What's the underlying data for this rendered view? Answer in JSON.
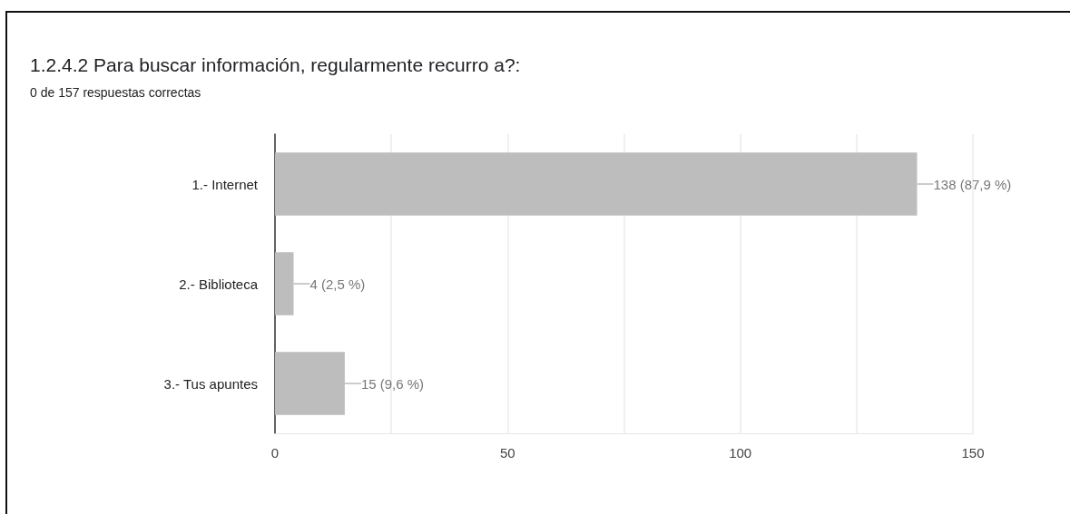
{
  "chart_data": {
    "type": "bar",
    "orientation": "horizontal",
    "title": "1.2.4.2 Para buscar información, regularmente recurro a?:",
    "subtitle": "0 de 157 respuestas correctas",
    "categories": [
      "1.- Internet",
      "2.- Biblioteca",
      "3.- Tus apuntes"
    ],
    "values": [
      138,
      4,
      15
    ],
    "value_labels": [
      "138 (87,9 %)",
      "4 (2,5 %)",
      "15 (9,6 %)"
    ],
    "color": "#bdbdbd",
    "xlim": [
      0,
      150
    ],
    "xticks": [
      0,
      {
        "value": 25,
        "label": null
      },
      50,
      {
        "value": 75,
        "label": null
      },
      100,
      {
        "value": 125,
        "label": null
      },
      150
    ],
    "grid": true
  }
}
